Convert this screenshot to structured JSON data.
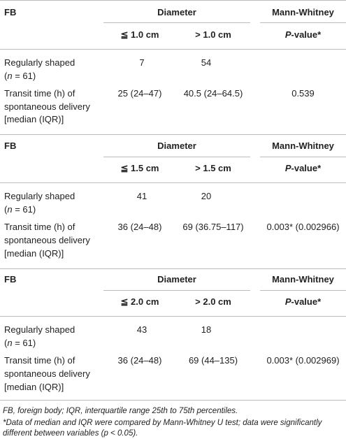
{
  "sections": [
    {
      "header": {
        "col1": "FB",
        "col2": "Diameter",
        "col3": "Mann-Whitney"
      },
      "subheader": {
        "small": "≦ 1.0 cm",
        "large": "> 1.0 cm",
        "p_prefix": "P",
        "p_suffix": "-value*"
      },
      "row_shape": {
        "label_line1": "Regularly shaped",
        "label_line2_open": "(",
        "label_line2_n": "n",
        "label_line2_rest": " = 61)",
        "small_count": "7",
        "large_count": "54"
      },
      "row_transit": {
        "label_line1": "Transit time (h) of",
        "label_line2": "spontaneous delivery",
        "label_line3": "[median (IQR)]",
        "small_value": "25 (24–47)",
        "large_value": "40.5 (24–64.5)",
        "p_value": "0.539"
      }
    },
    {
      "header": {
        "col1": "FB",
        "col2": "Diameter",
        "col3": "Mann-Whitney"
      },
      "subheader": {
        "small": "≦ 1.5 cm",
        "large": "> 1.5 cm",
        "p_prefix": "P",
        "p_suffix": "-value*"
      },
      "row_shape": {
        "label_line1": "Regularly shaped",
        "label_line2_open": "(",
        "label_line2_n": "n",
        "label_line2_rest": " = 61)",
        "small_count": "41",
        "large_count": "20"
      },
      "row_transit": {
        "label_line1": "Transit time (h) of",
        "label_line2": "spontaneous delivery",
        "label_line3": "[median (IQR)]",
        "small_value": "36 (24–48)",
        "large_value": "69 (36.75–117)",
        "p_value": "0.003* (0.002966)"
      }
    },
    {
      "header": {
        "col1": "FB",
        "col2": "Diameter",
        "col3": "Mann-Whitney"
      },
      "subheader": {
        "small": "≦ 2.0 cm",
        "large": "> 2.0 cm",
        "p_prefix": "P",
        "p_suffix": "-value*"
      },
      "row_shape": {
        "label_line1": "Regularly shaped",
        "label_line2_open": "(",
        "label_line2_n": "n",
        "label_line2_rest": " = 61)",
        "small_count": "43",
        "large_count": "18"
      },
      "row_transit": {
        "label_line1": "Transit time (h) of",
        "label_line2": "spontaneous delivery",
        "label_line3": "[median (IQR)]",
        "small_value": "36 (24–48)",
        "large_value": "69 (44–135)",
        "p_value": "0.003* (0.002969)"
      }
    }
  ],
  "footnotes": {
    "abbrev": "FB, foreign body; IQR, interquartile range 25th to 75th percentiles.",
    "stat_line1": "*Data of median and IQR were compared by Mann-Whitney U test; data were significantly",
    "stat_line2": "different between variables (p < 0.05)."
  }
}
